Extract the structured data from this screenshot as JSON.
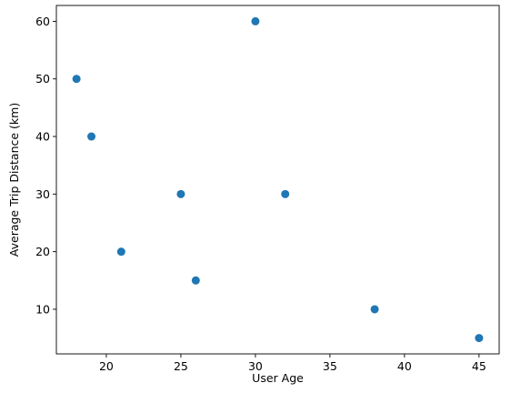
{
  "chart_data": {
    "type": "scatter",
    "xlabel": "User Age",
    "ylabel": "Average Trip Distance (km)",
    "x": [
      18,
      19,
      21,
      25,
      26,
      30,
      32,
      38,
      45
    ],
    "y": [
      50,
      40,
      20,
      30,
      15,
      60,
      30,
      10,
      5
    ],
    "xlim": [
      16.65,
      46.35
    ],
    "ylim": [
      2.25,
      62.75
    ],
    "xticks": [
      20,
      25,
      30,
      35,
      40,
      45
    ],
    "yticks": [
      10,
      20,
      30,
      40,
      50,
      60
    ],
    "xtick_labels": [
      "20",
      "25",
      "30",
      "35",
      "40",
      "45"
    ],
    "ytick_labels": [
      "10",
      "20",
      "30",
      "40",
      "50",
      "60"
    ],
    "marker_color": "#1f77b4",
    "grid": false,
    "legend": "none"
  }
}
